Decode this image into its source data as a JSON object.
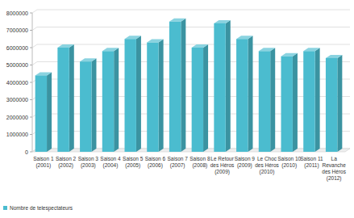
{
  "chart_data": {
    "type": "bar",
    "categories": [
      "Saison 1 (2001)",
      "Saison 2 (2002)",
      "Saison 3 (2003)",
      "Saison 4 (2004)",
      "Saison 5 (2005)",
      "Saison 6 (2006)",
      "Saison 7 (2007)",
      "Saison 8 (2008)",
      "Le Retour des Héros (2009)",
      "Saison 9 (2009)",
      "Le Choc des Héros (2010)",
      "Saison 10 (2010)",
      "Saison 11 (2011)",
      "La Revanche des Héros (2012)"
    ],
    "series": [
      {
        "name": "Nombre de telespectateurs",
        "color": "#4bbccf",
        "values": [
          4400000,
          6000000,
          5200000,
          5800000,
          6500000,
          6300000,
          7500000,
          6000000,
          7400000,
          6500000,
          5800000,
          5500000,
          5800000,
          5400000
        ]
      }
    ],
    "ylim": [
      0,
      8000000
    ],
    "yticks": [
      0,
      1000000,
      2000000,
      3000000,
      4000000,
      5000000,
      6000000,
      7000000,
      8000000
    ],
    "grid": true,
    "legend": "bottom-left"
  }
}
